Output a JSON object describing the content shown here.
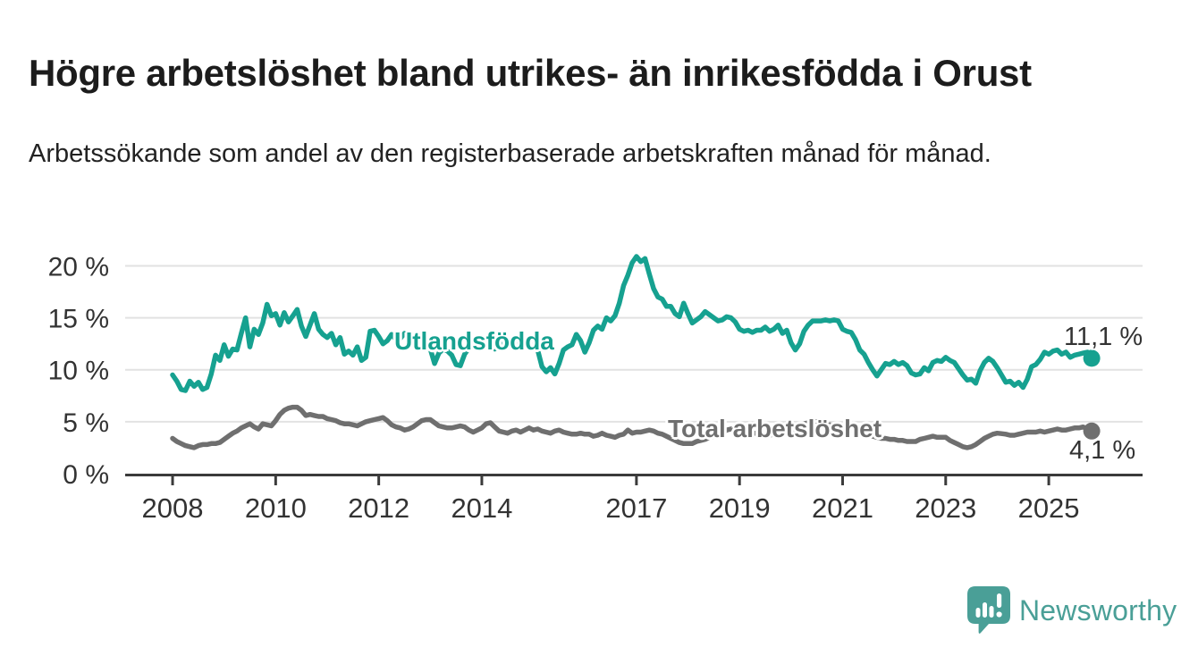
{
  "header": {
    "title": "Högre arbetslöshet bland utrikes- än inrikesfödda i Orust",
    "subtitle": "Arbetssökande som andel av den registerbaserade arbetskraften månad för månad."
  },
  "footer": {
    "brand": "Newsworthy",
    "brand_color": "#4a9f97"
  },
  "chart_data": {
    "type": "line",
    "title": "Högre arbetslöshet bland utrikes- än inrikesfödda i Orust",
    "subtitle": "Arbetssökande som andel av den registerbaserade arbetskraften månad för månad.",
    "xlabel": "",
    "ylabel": "",
    "grid": "horizontal",
    "grid_color": "#e2e2e2",
    "axis_color": "#3b3b3b",
    "axis_text_color": "#333333",
    "xlim": [
      2007.08,
      2026.82
    ],
    "ylim": [
      0,
      21.5
    ],
    "x_ticks": [
      [
        2008,
        "2008"
      ],
      [
        2010,
        "2010"
      ],
      [
        2012,
        "2012"
      ],
      [
        2014,
        "2014"
      ],
      [
        2017,
        "2017"
      ],
      [
        2019,
        "2019"
      ],
      [
        2021,
        "2021"
      ],
      [
        2023,
        "2023"
      ],
      [
        2025,
        "2025"
      ]
    ],
    "y_ticks": [
      [
        0,
        "0 %"
      ],
      [
        5,
        "5 %"
      ],
      [
        10,
        "10 %"
      ],
      [
        15,
        "15 %"
      ],
      [
        20,
        "20 %"
      ]
    ],
    "series": [
      {
        "name": "Utlandsfödda",
        "color": "#16a190",
        "end_label": "11,1 %",
        "end_value": 11.1,
        "start_year": 2008,
        "interval": "monthly",
        "values": [
          9.5,
          8.9,
          8.1,
          8.0,
          8.9,
          8.4,
          8.8,
          8.1,
          8.3,
          9.6,
          11.4,
          10.9,
          12.4,
          11.3,
          12.0,
          11.9,
          13.5,
          15.0,
          12.2,
          13.9,
          13.4,
          14.5,
          16.3,
          15.2,
          15.4,
          14.3,
          15.5,
          14.6,
          15.2,
          15.8,
          14.2,
          13.2,
          14.3,
          15.4,
          13.9,
          13.4,
          13.1,
          13.5,
          12.4,
          13.1,
          11.5,
          11.8,
          11.4,
          12.2,
          10.9,
          11.2,
          13.7,
          13.8,
          13.2,
          12.5,
          12.8,
          13.4,
          12.9,
          13.0,
          13.5,
          13.0,
          12.6,
          12.9,
          12.4,
          12.2,
          12.0,
          10.6,
          11.6,
          12.0,
          11.8,
          11.4,
          10.5,
          10.4,
          11.5,
          12.1,
          12.4,
          12.3,
          12.5,
          12.2,
          12.4,
          12.0,
          12.3,
          12.5,
          12.3,
          12.2,
          12.4,
          12.6,
          12.3,
          12.2,
          12.4,
          11.9,
          10.3,
          9.8,
          10.2,
          9.6,
          10.6,
          11.9,
          12.2,
          12.4,
          13.4,
          12.8,
          11.7,
          12.6,
          13.8,
          14.2,
          13.9,
          15.0,
          14.7,
          15.2,
          16.4,
          18.1,
          19.1,
          20.3,
          20.9,
          20.4,
          20.7,
          19.2,
          17.8,
          17.0,
          16.8,
          16.1,
          16.1,
          15.4,
          15.1,
          16.4,
          15.4,
          14.5,
          14.8,
          15.1,
          15.6,
          15.3,
          15.0,
          14.7,
          14.8,
          15.1,
          15.0,
          14.6,
          13.9,
          13.7,
          13.8,
          13.6,
          13.8,
          13.8,
          14.1,
          13.7,
          13.9,
          14.3,
          13.5,
          13.8,
          12.6,
          11.9,
          12.5,
          13.7,
          14.3,
          14.7,
          14.7,
          14.7,
          14.8,
          14.7,
          14.8,
          14.7,
          13.9,
          13.7,
          13.6,
          12.9,
          11.9,
          11.5,
          10.7,
          10.0,
          9.4,
          10.0,
          10.6,
          10.5,
          10.8,
          10.5,
          10.7,
          10.4,
          9.7,
          9.5,
          9.6,
          10.2,
          9.9,
          10.7,
          10.9,
          10.8,
          11.2,
          10.9,
          10.7,
          10.1,
          9.5,
          9.0,
          9.1,
          8.7,
          9.9,
          10.7,
          11.1,
          10.8,
          10.2,
          9.5,
          8.8,
          8.9,
          8.5,
          8.8,
          8.3,
          9.1,
          10.3,
          10.5,
          11.0,
          11.7,
          11.5,
          11.8,
          11.9,
          11.5,
          11.7,
          11.2,
          11.4,
          11.5,
          11.6,
          11.7,
          11.1
        ]
      },
      {
        "name": "Total arbetslöshet",
        "color": "#6f6f6f",
        "end_label": "4,1 %",
        "end_value": 4.1,
        "start_year": 2008,
        "interval": "monthly",
        "values": [
          3.4,
          3.1,
          2.9,
          2.7,
          2.6,
          2.5,
          2.7,
          2.8,
          2.8,
          2.9,
          2.9,
          3.0,
          3.3,
          3.6,
          3.9,
          4.1,
          4.4,
          4.6,
          4.8,
          4.5,
          4.3,
          4.8,
          4.7,
          4.6,
          5.1,
          5.7,
          6.1,
          6.3,
          6.4,
          6.4,
          6.1,
          5.6,
          5.7,
          5.6,
          5.5,
          5.5,
          5.3,
          5.2,
          5.1,
          4.9,
          4.8,
          4.8,
          4.7,
          4.6,
          4.8,
          5.0,
          5.1,
          5.2,
          5.3,
          5.4,
          5.1,
          4.7,
          4.5,
          4.4,
          4.2,
          4.3,
          4.5,
          4.8,
          5.1,
          5.2,
          5.2,
          4.9,
          4.6,
          4.5,
          4.4,
          4.4,
          4.5,
          4.6,
          4.5,
          4.2,
          4.0,
          4.2,
          4.4,
          4.8,
          4.9,
          4.5,
          4.1,
          4.0,
          3.9,
          4.1,
          4.2,
          4.0,
          4.2,
          4.4,
          4.2,
          4.3,
          4.1,
          4.0,
          3.9,
          4.1,
          4.2,
          4.0,
          3.9,
          3.8,
          3.8,
          3.9,
          3.8,
          3.8,
          3.6,
          3.7,
          3.9,
          3.7,
          3.6,
          3.5,
          3.7,
          3.8,
          4.2,
          3.9,
          4.0,
          4.0,
          4.1,
          4.2,
          4.1,
          3.9,
          3.8,
          3.6,
          3.4,
          3.2,
          3.0,
          2.9,
          2.9,
          2.9,
          3.1,
          3.2,
          3.3,
          3.5,
          3.6,
          3.8,
          3.9,
          4.2,
          4.3,
          4.4,
          4.2,
          4.0,
          3.8,
          3.9,
          3.9,
          3.8,
          3.7,
          3.7,
          3.8,
          3.8,
          3.9,
          4.0,
          4.1,
          4.3,
          4.6,
          4.8,
          4.9,
          5.0,
          5.0,
          4.9,
          4.8,
          4.7,
          4.6,
          4.5,
          4.4,
          4.3,
          4.2,
          4.0,
          3.9,
          3.8,
          3.7,
          3.6,
          3.5,
          3.4,
          3.4,
          3.3,
          3.3,
          3.2,
          3.2,
          3.1,
          3.1,
          3.1,
          3.3,
          3.4,
          3.5,
          3.6,
          3.5,
          3.5,
          3.5,
          3.2,
          3.0,
          2.8,
          2.6,
          2.5,
          2.6,
          2.8,
          3.1,
          3.4,
          3.6,
          3.8,
          3.9,
          3.85,
          3.8,
          3.7,
          3.7,
          3.8,
          3.9,
          4.0,
          4.0,
          4.0,
          4.1,
          4.0,
          4.1,
          4.2,
          4.3,
          4.2,
          4.2,
          4.3,
          4.4,
          4.4,
          4.5,
          4.3,
          4.1
        ]
      }
    ]
  }
}
